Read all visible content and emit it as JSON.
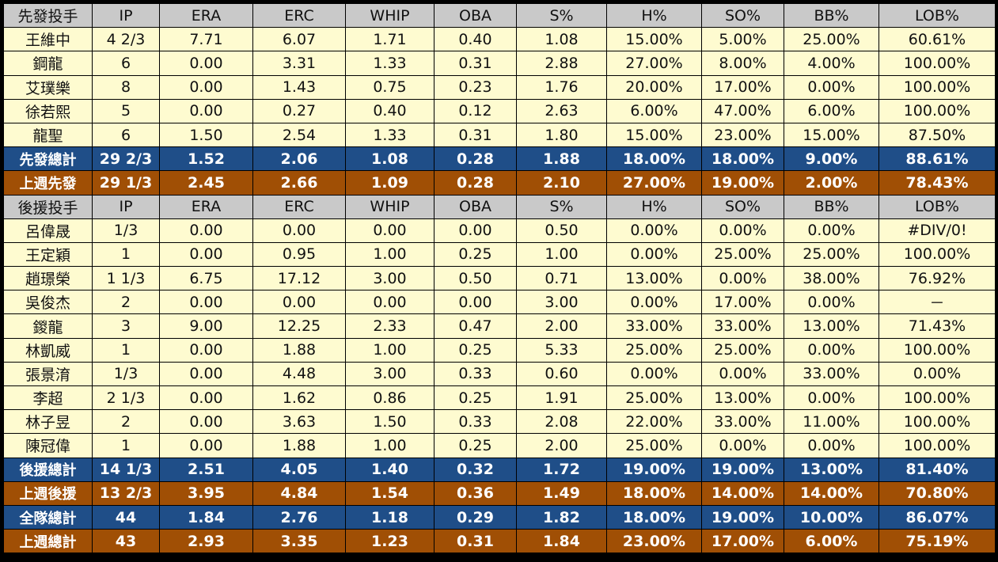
{
  "starters": {
    "header": [
      "先發投手",
      "IP",
      "ERA",
      "ERC",
      "WHIP",
      "OBA",
      "S%",
      "H%",
      "SO%",
      "BB%",
      "LOB%"
    ],
    "rows": [
      [
        "王維中",
        "4 2/3",
        "7.71",
        "6.07",
        "1.71",
        "0.40",
        "1.08",
        "15.00%",
        "5.00%",
        "25.00%",
        "60.61%"
      ],
      [
        "鋼龍",
        "6",
        "0.00",
        "3.31",
        "1.33",
        "0.31",
        "2.88",
        "27.00%",
        "8.00%",
        "4.00%",
        "100.00%"
      ],
      [
        "艾璞樂",
        "8",
        "0.00",
        "1.43",
        "0.75",
        "0.23",
        "1.76",
        "20.00%",
        "17.00%",
        "0.00%",
        "100.00%"
      ],
      [
        "徐若熙",
        "5",
        "0.00",
        "0.27",
        "0.40",
        "0.12",
        "2.63",
        "6.00%",
        "47.00%",
        "6.00%",
        "100.00%"
      ],
      [
        "龍聖",
        "6",
        "1.50",
        "2.54",
        "1.33",
        "0.31",
        "1.80",
        "15.00%",
        "23.00%",
        "15.00%",
        "87.50%"
      ]
    ],
    "total": [
      "先發總計",
      "29 2/3",
      "1.52",
      "2.06",
      "1.08",
      "0.28",
      "1.88",
      "18.00%",
      "18.00%",
      "9.00%",
      "88.61%"
    ],
    "last_week": [
      "上週先發",
      "29 1/3",
      "2.45",
      "2.66",
      "1.09",
      "0.28",
      "2.10",
      "27.00%",
      "19.00%",
      "2.00%",
      "78.43%"
    ]
  },
  "relievers": {
    "header": [
      "後援投手",
      "IP",
      "ERA",
      "ERC",
      "WHIP",
      "OBA",
      "S%",
      "H%",
      "SO%",
      "BB%",
      "LOB%"
    ],
    "rows": [
      [
        "呂偉晟",
        "1/3",
        "0.00",
        "0.00",
        "0.00",
        "0.00",
        "0.50",
        "0.00%",
        "0.00%",
        "0.00%",
        "#DIV/0!"
      ],
      [
        "王定穎",
        "1",
        "0.00",
        "0.95",
        "1.00",
        "0.25",
        "1.00",
        "0.00%",
        "25.00%",
        "25.00%",
        "100.00%"
      ],
      [
        "趙璟榮",
        "1 1/3",
        "6.75",
        "17.12",
        "3.00",
        "0.50",
        "0.71",
        "13.00%",
        "0.00%",
        "38.00%",
        "76.92%"
      ],
      [
        "吳俊杰",
        "2",
        "0.00",
        "0.00",
        "0.00",
        "0.00",
        "3.00",
        "0.00%",
        "17.00%",
        "0.00%",
        "－"
      ],
      [
        "鍐龍",
        "3",
        "9.00",
        "12.25",
        "2.33",
        "0.47",
        "2.00",
        "33.00%",
        "33.00%",
        "13.00%",
        "71.43%"
      ],
      [
        "林凱威",
        "1",
        "0.00",
        "1.88",
        "1.00",
        "0.25",
        "5.33",
        "25.00%",
        "25.00%",
        "0.00%",
        "100.00%"
      ],
      [
        "張景淯",
        "1/3",
        "0.00",
        "4.48",
        "3.00",
        "0.33",
        "0.60",
        "0.00%",
        "0.00%",
        "33.00%",
        "0.00%"
      ],
      [
        "李超",
        "2 1/3",
        "0.00",
        "1.62",
        "0.86",
        "0.25",
        "1.91",
        "25.00%",
        "13.00%",
        "0.00%",
        "100.00%"
      ],
      [
        "林子昱",
        "2",
        "0.00",
        "3.63",
        "1.50",
        "0.33",
        "2.08",
        "22.00%",
        "33.00%",
        "11.00%",
        "100.00%"
      ],
      [
        "陳冠偉",
        "1",
        "0.00",
        "1.88",
        "1.00",
        "0.25",
        "2.00",
        "25.00%",
        "0.00%",
        "0.00%",
        "100.00%"
      ]
    ],
    "total": [
      "後援總計",
      "14 1/3",
      "2.51",
      "4.05",
      "1.40",
      "0.32",
      "1.72",
      "19.00%",
      "19.00%",
      "13.00%",
      "81.40%"
    ],
    "last_week": [
      "上週後援",
      "13 2/3",
      "3.95",
      "4.84",
      "1.54",
      "0.36",
      "1.49",
      "18.00%",
      "14.00%",
      "14.00%",
      "70.80%"
    ]
  },
  "team": {
    "total": [
      "全隊總計",
      "44",
      "1.84",
      "2.76",
      "1.18",
      "0.29",
      "1.82",
      "18.00%",
      "19.00%",
      "10.00%",
      "86.07%"
    ],
    "last_week": [
      "上週總計",
      "43",
      "2.93",
      "3.35",
      "1.23",
      "0.31",
      "1.84",
      "23.00%",
      "17.00%",
      "6.00%",
      "75.19%"
    ]
  },
  "colors": {
    "header_bg": "#c9c9c9",
    "row_bg": "#fefbd0",
    "total_bg": "#1f4e88",
    "last_week_bg": "#a04f05"
  }
}
